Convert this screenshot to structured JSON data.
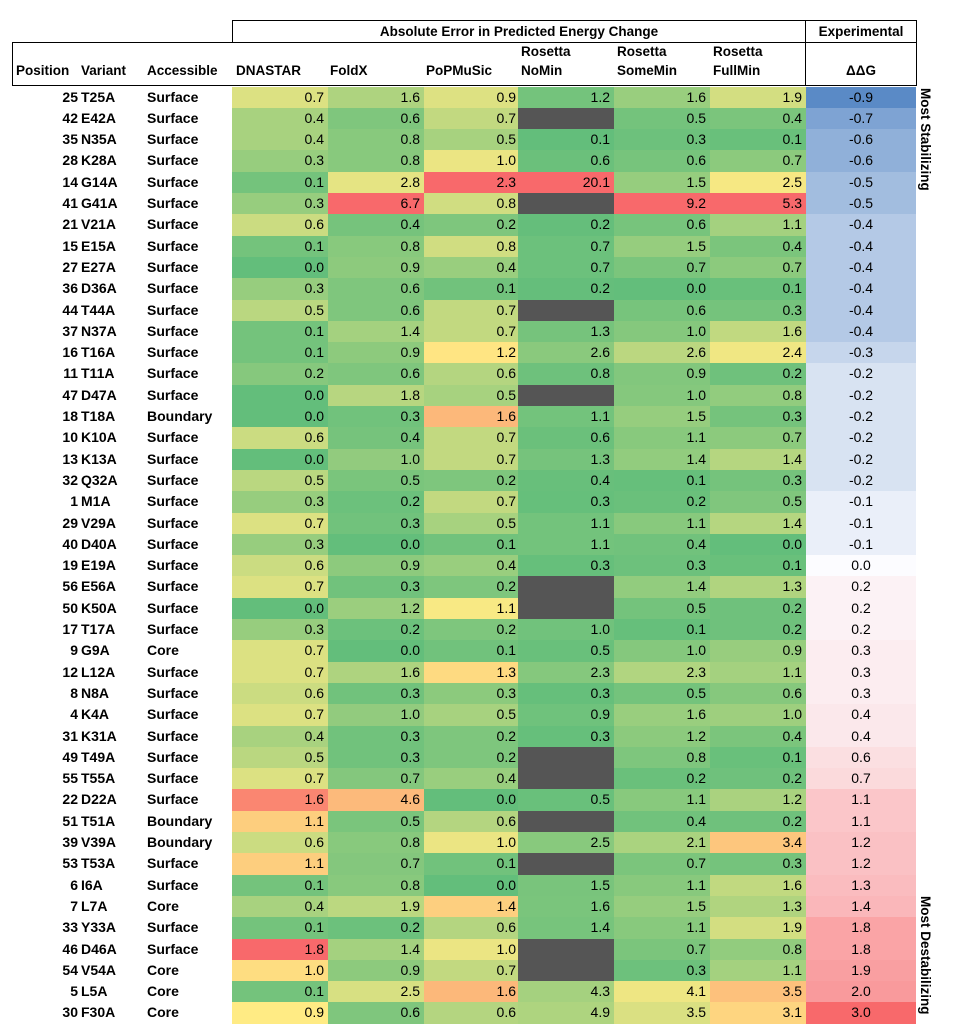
{
  "chart_data": {
    "type": "table",
    "group_header_error": "Absolute Error in Predicted Energy Change",
    "group_header_experimental": "Experimental",
    "columns": {
      "position": "Position",
      "variant": "Variant",
      "accessible": "Accessible",
      "methods": [
        [
          "DNASTAR"
        ],
        [
          "FoldX"
        ],
        [
          "PoPMuSic"
        ],
        [
          "Rosetta",
          "NoMin"
        ],
        [
          "Rosetta",
          "SomeMin"
        ],
        [
          "Rosetta",
          "FullMin"
        ]
      ],
      "ddg": "ΔΔG"
    },
    "side_label_top": "Most Stabilizing",
    "side_label_bottom": "Most Destabilizing",
    "rows": [
      {
        "position": "25",
        "variant": "T25A",
        "accessible": "Surface",
        "errors": [
          "0.7",
          "1.6",
          "0.9",
          "1.2",
          "1.6",
          "1.9"
        ],
        "ddg": "-0.9"
      },
      {
        "position": "42",
        "variant": "E42A",
        "accessible": "Surface",
        "errors": [
          "0.4",
          "0.6",
          "0.7",
          null,
          "0.5",
          "0.4"
        ],
        "ddg": "-0.7"
      },
      {
        "position": "35",
        "variant": "N35A",
        "accessible": "Surface",
        "errors": [
          "0.4",
          "0.8",
          "0.5",
          "0.1",
          "0.3",
          "0.1"
        ],
        "ddg": "-0.6"
      },
      {
        "position": "28",
        "variant": "K28A",
        "accessible": "Surface",
        "errors": [
          "0.3",
          "0.8",
          "1.0",
          "0.6",
          "0.6",
          "0.7"
        ],
        "ddg": "-0.6"
      },
      {
        "position": "14",
        "variant": "G14A",
        "accessible": "Surface",
        "errors": [
          "0.1",
          "2.8",
          "2.3",
          "20.1",
          "1.5",
          "2.5"
        ],
        "ddg": "-0.5"
      },
      {
        "position": "41",
        "variant": "G41A",
        "accessible": "Surface",
        "errors": [
          "0.3",
          "6.7",
          "0.8",
          null,
          "9.2",
          "5.3"
        ],
        "ddg": "-0.5"
      },
      {
        "position": "21",
        "variant": "V21A",
        "accessible": "Surface",
        "errors": [
          "0.6",
          "0.4",
          "0.2",
          "0.2",
          "0.6",
          "1.1"
        ],
        "ddg": "-0.4"
      },
      {
        "position": "15",
        "variant": "E15A",
        "accessible": "Surface",
        "errors": [
          "0.1",
          "0.8",
          "0.8",
          "0.7",
          "1.5",
          "0.4"
        ],
        "ddg": "-0.4"
      },
      {
        "position": "27",
        "variant": "E27A",
        "accessible": "Surface",
        "errors": [
          "0.0",
          "0.9",
          "0.4",
          "0.7",
          "0.7",
          "0.7"
        ],
        "ddg": "-0.4"
      },
      {
        "position": "36",
        "variant": "D36A",
        "accessible": "Surface",
        "errors": [
          "0.3",
          "0.6",
          "0.1",
          "0.2",
          "0.0",
          "0.1"
        ],
        "ddg": "-0.4"
      },
      {
        "position": "44",
        "variant": "T44A",
        "accessible": "Surface",
        "errors": [
          "0.5",
          "0.6",
          "0.7",
          null,
          "0.6",
          "0.3"
        ],
        "ddg": "-0.4"
      },
      {
        "position": "37",
        "variant": "N37A",
        "accessible": "Surface",
        "errors": [
          "0.1",
          "1.4",
          "0.7",
          "1.3",
          "1.0",
          "1.6"
        ],
        "ddg": "-0.4"
      },
      {
        "position": "16",
        "variant": "T16A",
        "accessible": "Surface",
        "errors": [
          "0.1",
          "0.9",
          "1.2",
          "2.6",
          "2.6",
          "2.4"
        ],
        "ddg": "-0.3"
      },
      {
        "position": "11",
        "variant": "T11A",
        "accessible": "Surface",
        "errors": [
          "0.2",
          "0.6",
          "0.6",
          "0.8",
          "0.9",
          "0.2"
        ],
        "ddg": "-0.2"
      },
      {
        "position": "47",
        "variant": "D47A",
        "accessible": "Surface",
        "errors": [
          "0.0",
          "1.8",
          "0.5",
          null,
          "1.0",
          "0.8"
        ],
        "ddg": "-0.2"
      },
      {
        "position": "18",
        "variant": "T18A",
        "accessible": "Boundary",
        "errors": [
          "0.0",
          "0.3",
          "1.6",
          "1.1",
          "1.5",
          "0.3"
        ],
        "ddg": "-0.2"
      },
      {
        "position": "10",
        "variant": "K10A",
        "accessible": "Surface",
        "errors": [
          "0.6",
          "0.4",
          "0.7",
          "0.6",
          "1.1",
          "0.7"
        ],
        "ddg": "-0.2"
      },
      {
        "position": "13",
        "variant": "K13A",
        "accessible": "Surface",
        "errors": [
          "0.0",
          "1.0",
          "0.7",
          "1.3",
          "1.4",
          "1.4"
        ],
        "ddg": "-0.2"
      },
      {
        "position": "32",
        "variant": "Q32A",
        "accessible": "Surface",
        "errors": [
          "0.5",
          "0.5",
          "0.2",
          "0.4",
          "0.1",
          "0.3"
        ],
        "ddg": "-0.2"
      },
      {
        "position": "1",
        "variant": "M1A",
        "accessible": "Surface",
        "errors": [
          "0.3",
          "0.2",
          "0.7",
          "0.3",
          "0.2",
          "0.5"
        ],
        "ddg": "-0.1"
      },
      {
        "position": "29",
        "variant": "V29A",
        "accessible": "Surface",
        "errors": [
          "0.7",
          "0.3",
          "0.5",
          "1.1",
          "1.1",
          "1.4"
        ],
        "ddg": "-0.1"
      },
      {
        "position": "40",
        "variant": "D40A",
        "accessible": "Surface",
        "errors": [
          "0.3",
          "0.0",
          "0.1",
          "1.1",
          "0.4",
          "0.0"
        ],
        "ddg": "-0.1"
      },
      {
        "position": "19",
        "variant": "E19A",
        "accessible": "Surface",
        "errors": [
          "0.6",
          "0.9",
          "0.4",
          "0.3",
          "0.3",
          "0.1"
        ],
        "ddg": "0.0"
      },
      {
        "position": "56",
        "variant": "E56A",
        "accessible": "Surface",
        "errors": [
          "0.7",
          "0.3",
          "0.2",
          null,
          "1.4",
          "1.3"
        ],
        "ddg": "0.2"
      },
      {
        "position": "50",
        "variant": "K50A",
        "accessible": "Surface",
        "errors": [
          "0.0",
          "1.2",
          "1.1",
          null,
          "0.5",
          "0.2"
        ],
        "ddg": "0.2"
      },
      {
        "position": "17",
        "variant": "T17A",
        "accessible": "Surface",
        "errors": [
          "0.3",
          "0.2",
          "0.2",
          "1.0",
          "0.1",
          "0.2"
        ],
        "ddg": "0.2"
      },
      {
        "position": "9",
        "variant": "G9A",
        "accessible": "Core",
        "errors": [
          "0.7",
          "0.0",
          "0.1",
          "0.5",
          "1.0",
          "0.9"
        ],
        "ddg": "0.3"
      },
      {
        "position": "12",
        "variant": "L12A",
        "accessible": "Surface",
        "errors": [
          "0.7",
          "1.6",
          "1.3",
          "2.3",
          "2.3",
          "1.1"
        ],
        "ddg": "0.3"
      },
      {
        "position": "8",
        "variant": "N8A",
        "accessible": "Surface",
        "errors": [
          "0.6",
          "0.3",
          "0.3",
          "0.3",
          "0.5",
          "0.6"
        ],
        "ddg": "0.3"
      },
      {
        "position": "4",
        "variant": "K4A",
        "accessible": "Surface",
        "errors": [
          "0.7",
          "1.0",
          "0.5",
          "0.9",
          "1.6",
          "1.0"
        ],
        "ddg": "0.4"
      },
      {
        "position": "31",
        "variant": "K31A",
        "accessible": "Surface",
        "errors": [
          "0.4",
          "0.3",
          "0.2",
          "0.3",
          "1.2",
          "0.4"
        ],
        "ddg": "0.4"
      },
      {
        "position": "49",
        "variant": "T49A",
        "accessible": "Surface",
        "errors": [
          "0.5",
          "0.3",
          "0.2",
          null,
          "0.8",
          "0.1"
        ],
        "ddg": "0.6"
      },
      {
        "position": "55",
        "variant": "T55A",
        "accessible": "Surface",
        "errors": [
          "0.7",
          "0.7",
          "0.4",
          null,
          "0.2",
          "0.2"
        ],
        "ddg": "0.7"
      },
      {
        "position": "22",
        "variant": "D22A",
        "accessible": "Surface",
        "errors": [
          "1.6",
          "4.6",
          "0.0",
          "0.5",
          "1.1",
          "1.2"
        ],
        "ddg": "1.1"
      },
      {
        "position": "51",
        "variant": "T51A",
        "accessible": "Boundary",
        "errors": [
          "1.1",
          "0.5",
          "0.6",
          null,
          "0.4",
          "0.2"
        ],
        "ddg": "1.1"
      },
      {
        "position": "39",
        "variant": "V39A",
        "accessible": "Boundary",
        "errors": [
          "0.6",
          "0.8",
          "1.0",
          "2.5",
          "2.1",
          "3.4"
        ],
        "ddg": "1.2"
      },
      {
        "position": "53",
        "variant": "T53A",
        "accessible": "Surface",
        "errors": [
          "1.1",
          "0.7",
          "0.1",
          null,
          "0.7",
          "0.3"
        ],
        "ddg": "1.2"
      },
      {
        "position": "6",
        "variant": "I6A",
        "accessible": "Surface",
        "errors": [
          "0.1",
          "0.8",
          "0.0",
          "1.5",
          "1.1",
          "1.6"
        ],
        "ddg": "1.3"
      },
      {
        "position": "7",
        "variant": "L7A",
        "accessible": "Core",
        "errors": [
          "0.4",
          "1.9",
          "1.4",
          "1.6",
          "1.5",
          "1.3"
        ],
        "ddg": "1.4"
      },
      {
        "position": "33",
        "variant": "Y33A",
        "accessible": "Surface",
        "errors": [
          "0.1",
          "0.2",
          "0.6",
          "1.4",
          "1.1",
          "1.9"
        ],
        "ddg": "1.8"
      },
      {
        "position": "46",
        "variant": "D46A",
        "accessible": "Surface",
        "errors": [
          "1.8",
          "1.4",
          "1.0",
          null,
          "0.7",
          "0.8"
        ],
        "ddg": "1.8"
      },
      {
        "position": "54",
        "variant": "V54A",
        "accessible": "Core",
        "errors": [
          "1.0",
          "0.9",
          "0.7",
          null,
          "0.3",
          "1.1"
        ],
        "ddg": "1.9"
      },
      {
        "position": "5",
        "variant": "L5A",
        "accessible": "Core",
        "errors": [
          "0.1",
          "2.5",
          "1.6",
          "4.3",
          "4.1",
          "3.5"
        ],
        "ddg": "2.0"
      },
      {
        "position": "30",
        "variant": "F30A",
        "accessible": "Core",
        "errors": [
          "0.9",
          "0.6",
          "0.6",
          "4.9",
          "3.5",
          "3.1"
        ],
        "ddg": "3.0"
      }
    ],
    "colors": {
      "error_low": "#63be7b",
      "error_mid": "#ffeb84",
      "error_high": "#f8696b",
      "missing": "#555555",
      "ddg_negative": "#5a8ac6",
      "ddg_zero": "#fcfcff",
      "ddg_positive": "#f8696b"
    }
  }
}
